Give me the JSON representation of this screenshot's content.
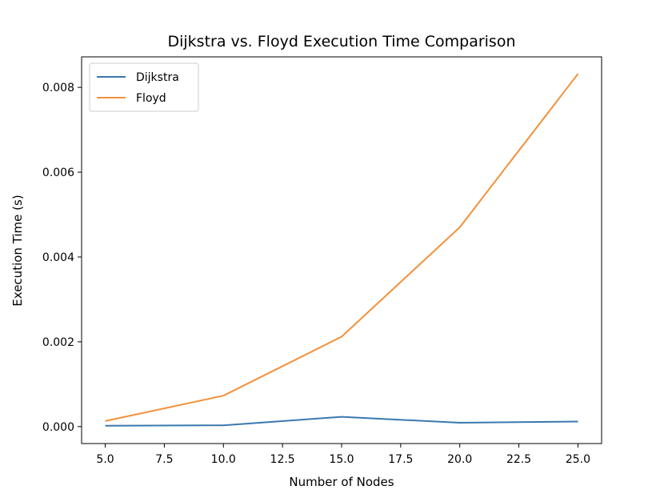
{
  "chart_data": {
    "type": "line",
    "title": "Dijkstra vs. Floyd Execution Time Comparison",
    "xlabel": "Number of Nodes",
    "ylabel": "Execution Time (s)",
    "x": [
      5,
      10,
      15,
      20,
      25
    ],
    "xlim": [
      4.0,
      26.0
    ],
    "ylim": [
      -0.0004,
      0.00872
    ],
    "xticks": [
      5.0,
      7.5,
      10.0,
      12.5,
      15.0,
      17.5,
      20.0,
      22.5,
      25.0
    ],
    "xtick_labels": [
      "5.0",
      "7.5",
      "10.0",
      "12.5",
      "15.0",
      "17.5",
      "20.0",
      "22.5",
      "25.0"
    ],
    "yticks": [
      0.0,
      0.002,
      0.004,
      0.006,
      0.008
    ],
    "ytick_labels": [
      "0.000",
      "0.002",
      "0.004",
      "0.006",
      "0.008"
    ],
    "grid": false,
    "legend_position": "top-left",
    "series": [
      {
        "name": "Dijkstra",
        "color": "#3a78b0",
        "values": [
          2e-05,
          3e-05,
          0.00023,
          9e-05,
          0.00012
        ]
      },
      {
        "name": "Floyd",
        "color": "#f2913a",
        "values": [
          0.00013,
          0.00073,
          0.00212,
          0.0047,
          0.00832
        ]
      }
    ]
  }
}
